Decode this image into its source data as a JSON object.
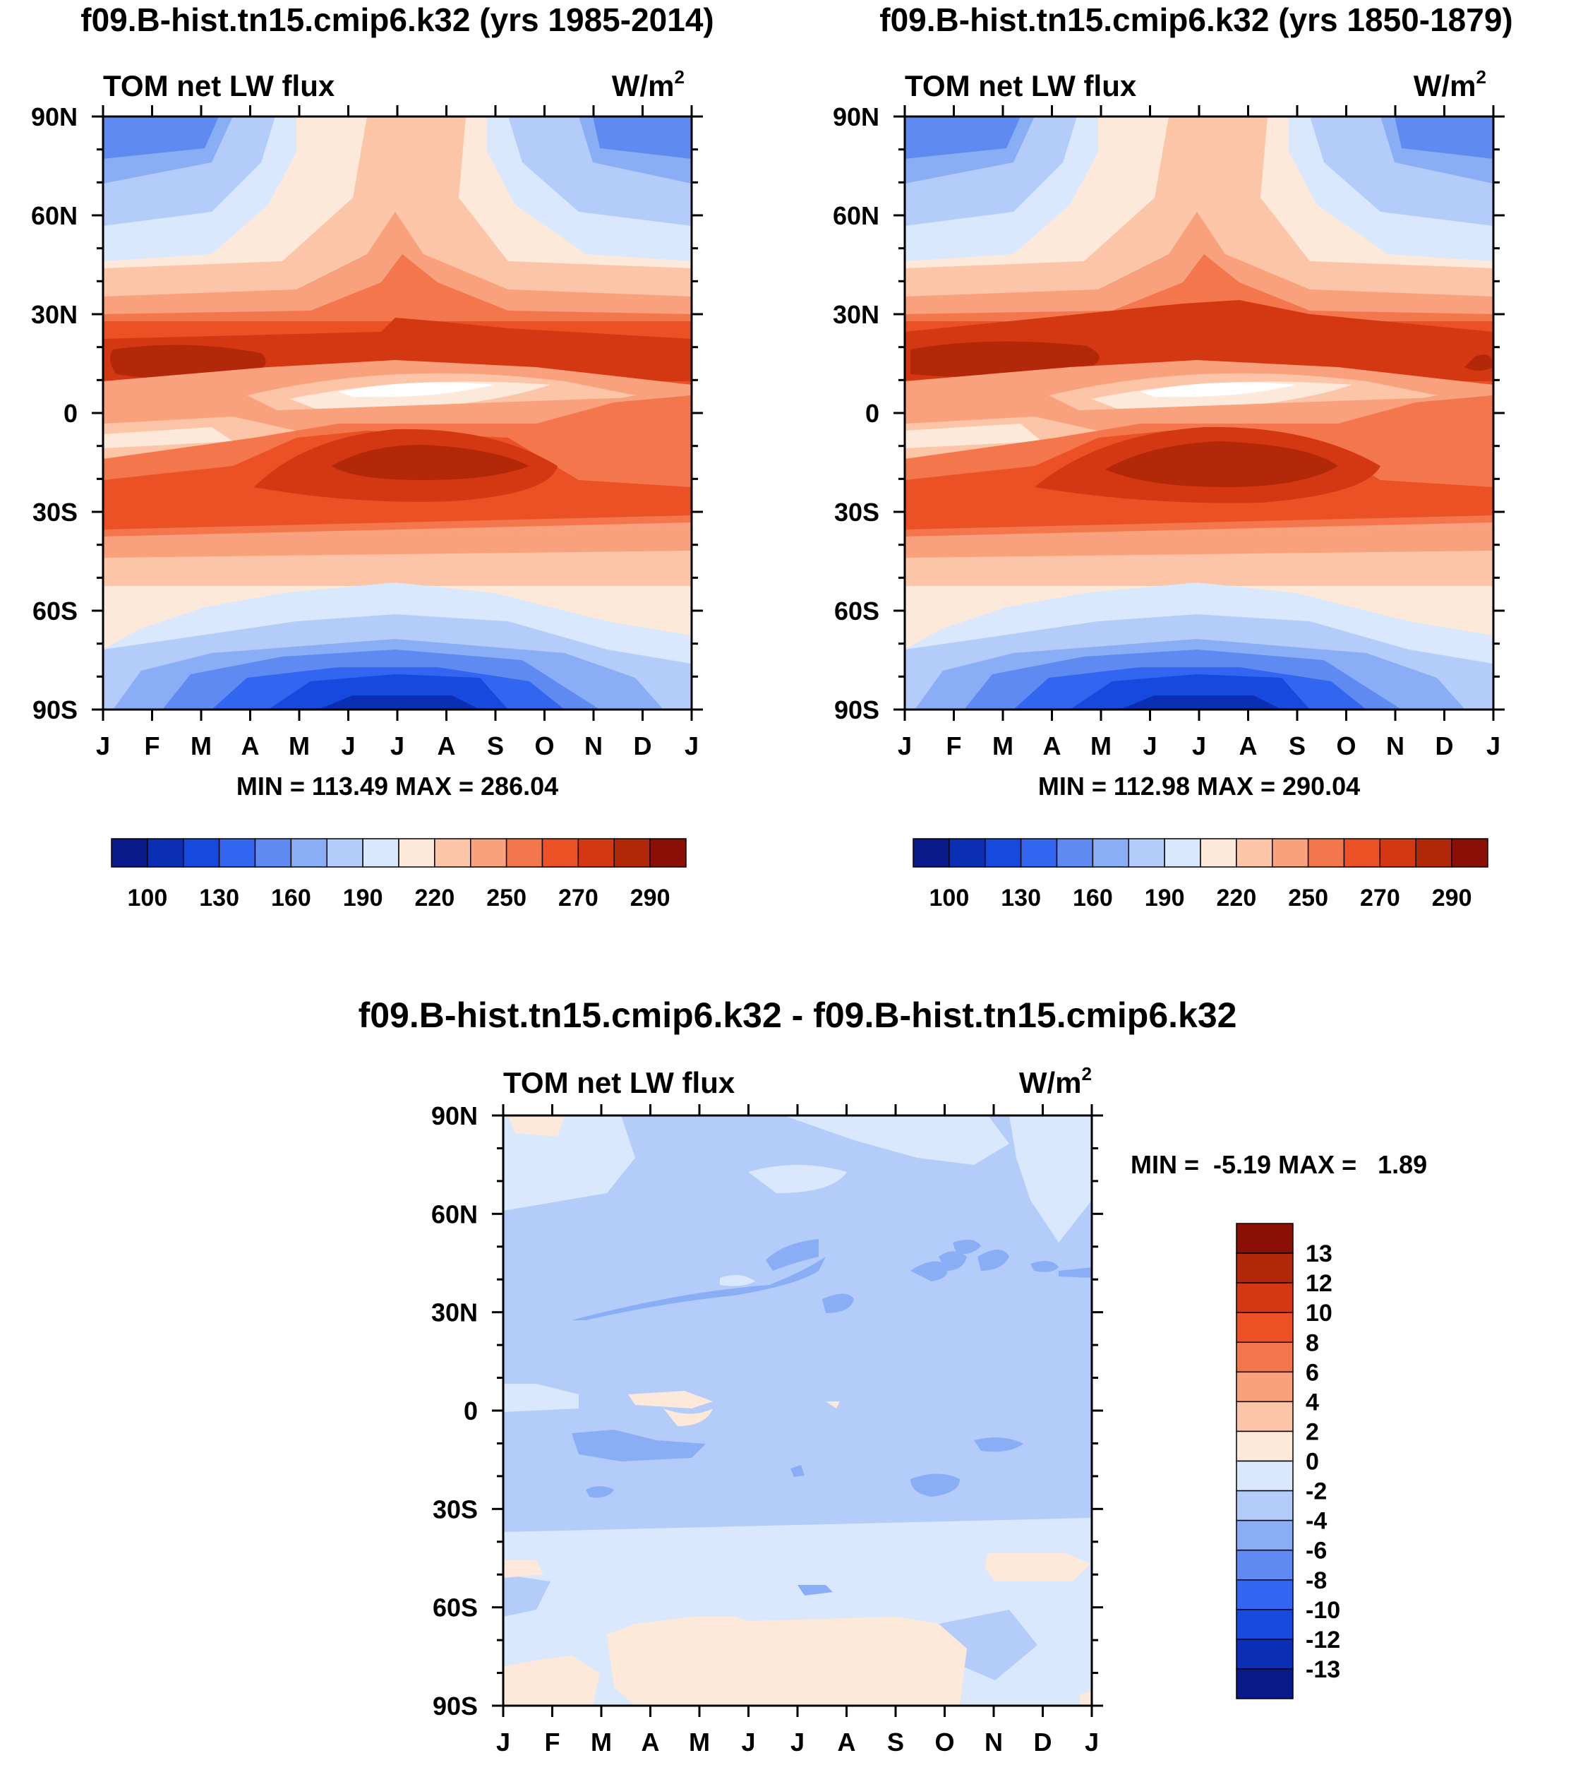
{
  "chart_data": [
    {
      "type": "heatmap",
      "kind": "contour",
      "title": "f09.B-hist.tn15.cmip6.k32 (yrs 1985-2014)",
      "subtitle_left": "TOM net LW flux",
      "units_base": "W/m",
      "units_exp": "2",
      "xlabel": "",
      "ylabel": "",
      "x_ticks": [
        "J",
        "F",
        "M",
        "A",
        "M",
        "J",
        "J",
        "A",
        "S",
        "O",
        "N",
        "D",
        "J"
      ],
      "y_ticks": [
        "90N",
        "60N",
        "30N",
        "0",
        "30S",
        "60S",
        "90S"
      ],
      "y_tick_values": [
        90,
        60,
        30,
        0,
        -30,
        -60,
        -90
      ],
      "ylim": [
        -90,
        90
      ],
      "min_max_label": "MIN = 113.49 MAX = 286.04",
      "min": 113.49,
      "max": 286.04,
      "colorbar_levels": [
        "100",
        "130",
        "160",
        "190",
        "220",
        "250",
        "270",
        "290"
      ],
      "colorbar_colors": [
        "#0b1a8a",
        "#0a2fb5",
        "#1649de",
        "#3366f0",
        "#5e8af2",
        "#8aaef6",
        "#b3ccfa",
        "#d9e8fc",
        "#fde9d9",
        "#fcc5a8",
        "#f9a07c",
        "#f4764c",
        "#ec5025",
        "#d33812",
        "#b22809",
        "#8a0f04"
      ]
    },
    {
      "type": "heatmap",
      "kind": "contour",
      "title": "f09.B-hist.tn15.cmip6.k32 (yrs 1850-1879)",
      "subtitle_left": "TOM net LW flux",
      "units_base": "W/m",
      "units_exp": "2",
      "xlabel": "",
      "ylabel": "",
      "x_ticks": [
        "J",
        "F",
        "M",
        "A",
        "M",
        "J",
        "J",
        "A",
        "S",
        "O",
        "N",
        "D",
        "J"
      ],
      "y_ticks": [
        "90N",
        "60N",
        "30N",
        "0",
        "30S",
        "60S",
        "90S"
      ],
      "y_tick_values": [
        90,
        60,
        30,
        0,
        -30,
        -60,
        -90
      ],
      "ylim": [
        -90,
        90
      ],
      "min_max_label": "MIN = 112.98 MAX = 290.04",
      "min": 112.98,
      "max": 290.04,
      "colorbar_levels": [
        "100",
        "130",
        "160",
        "190",
        "220",
        "250",
        "270",
        "290"
      ],
      "colorbar_colors": [
        "#0b1a8a",
        "#0a2fb5",
        "#1649de",
        "#3366f0",
        "#5e8af2",
        "#8aaef6",
        "#b3ccfa",
        "#d9e8fc",
        "#fde9d9",
        "#fcc5a8",
        "#f9a07c",
        "#f4764c",
        "#ec5025",
        "#d33812",
        "#b22809",
        "#8a0f04"
      ]
    },
    {
      "type": "heatmap",
      "kind": "contour-difference",
      "title": "f09.B-hist.tn15.cmip6.k32 - f09.B-hist.tn15.cmip6.k32",
      "subtitle_left": "TOM net LW flux",
      "units_base": "W/m",
      "units_exp": "2",
      "xlabel": "",
      "ylabel": "",
      "x_ticks": [
        "J",
        "F",
        "M",
        "A",
        "M",
        "J",
        "J",
        "A",
        "S",
        "O",
        "N",
        "D",
        "J"
      ],
      "y_ticks": [
        "90N",
        "60N",
        "30N",
        "0",
        "30S",
        "60S",
        "90S"
      ],
      "y_tick_values": [
        90,
        60,
        30,
        0,
        -30,
        -60,
        -90
      ],
      "ylim": [
        -90,
        90
      ],
      "min_max_label": "MIN =  -5.19 MAX =   1.89",
      "min": -5.19,
      "max": 1.89,
      "colorbar_levels": [
        "13",
        "12",
        "10",
        "8",
        "6",
        "4",
        "2",
        "0",
        "-2",
        "-4",
        "-6",
        "-8",
        "-10",
        "-12",
        "-13"
      ],
      "colorbar_colors": [
        "#8a0f04",
        "#b22809",
        "#d33812",
        "#ec5025",
        "#f4764c",
        "#f9a07c",
        "#fcc5a8",
        "#fde9d9",
        "#d9e8fc",
        "#b3ccfa",
        "#8aaef6",
        "#5e8af2",
        "#3366f0",
        "#1649de",
        "#0a2fb5",
        "#0b1a8a"
      ]
    }
  ]
}
